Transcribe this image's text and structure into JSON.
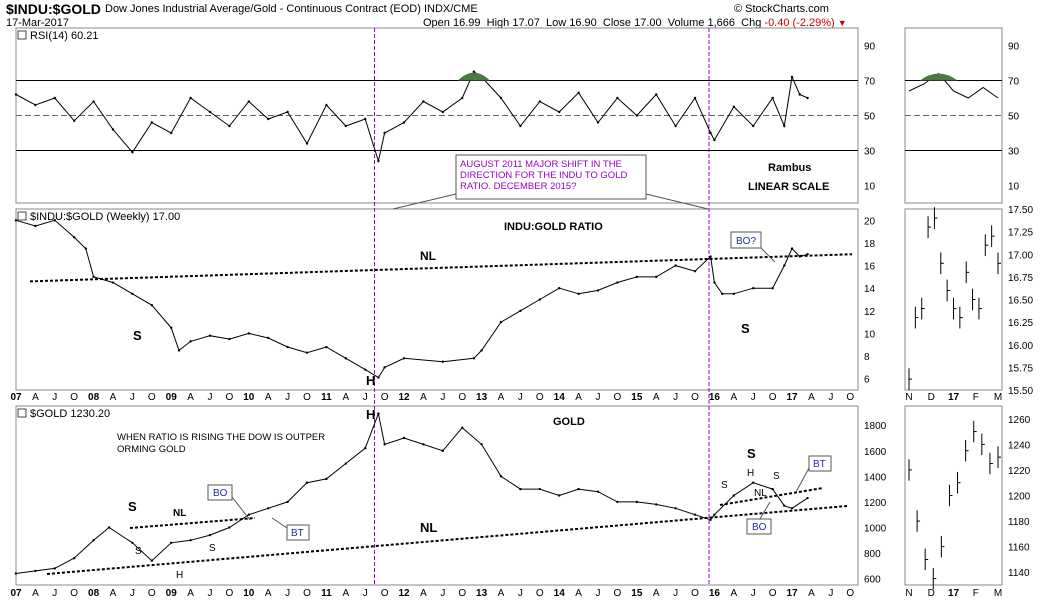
{
  "header": {
    "symbol": "$INDU:$GOLD",
    "description": "Dow Jones Industrial Average/Gold - Continuous Contract (EOD)",
    "exchange": "INDX/CME",
    "date": "17-Mar-2017",
    "brand": "© StockCharts.com",
    "open_label": "Open",
    "open": "16.99",
    "high_label": "High",
    "high": "17.07",
    "low_label": "Low",
    "low": "16.90",
    "close_label": "Close",
    "close": "17.00",
    "volume_label": "Volume",
    "volume": "1,666",
    "chg_label": "Chg",
    "chg": "-0.40 (-2.29%)"
  },
  "colors": {
    "annotation": "#9900cc",
    "box_text": "#1f2e9f",
    "rsi_fill": "#4a7a42",
    "line": "#000000"
  },
  "chart_data": [
    {
      "id": "rsi",
      "type": "line",
      "title": "RSI(14) 60.21",
      "ylim": [
        0,
        100
      ],
      "y_ticks": [
        10,
        30,
        50,
        70,
        90
      ],
      "levels": [
        30,
        50,
        70
      ],
      "x": [
        2007.0,
        2007.25,
        2007.5,
        2007.75,
        2008.0,
        2008.25,
        2008.5,
        2008.75,
        2009.0,
        2009.25,
        2009.5,
        2009.75,
        2010.0,
        2010.25,
        2010.5,
        2010.75,
        2011.0,
        2011.25,
        2011.5,
        2011.67,
        2011.75,
        2012.0,
        2012.25,
        2012.5,
        2012.75,
        2012.9,
        2013.0,
        2013.25,
        2013.5,
        2013.75,
        2014.0,
        2014.25,
        2014.5,
        2014.75,
        2015.0,
        2015.25,
        2015.5,
        2015.75,
        2015.95,
        2016.0,
        2016.25,
        2016.5,
        2016.75,
        2016.9,
        2017.0,
        2017.1,
        2017.2
      ],
      "values": [
        62,
        56,
        60,
        47,
        58,
        42,
        29,
        46,
        40,
        60,
        52,
        44,
        58,
        48,
        52,
        34,
        56,
        44,
        48,
        24,
        40,
        46,
        58,
        52,
        60,
        75,
        72,
        60,
        44,
        58,
        52,
        63,
        46,
        60,
        50,
        62,
        44,
        60,
        40,
        36,
        55,
        44,
        60,
        44,
        72,
        62,
        60
      ],
      "inset_x": [
        "2016-12",
        "2017-01",
        "2017-02",
        "2017-03"
      ],
      "inset_values": [
        64,
        68,
        74,
        64,
        60,
        66,
        60
      ]
    },
    {
      "id": "ratio",
      "type": "line",
      "title": "$INDU:$GOLD (Weekly) 17.00",
      "ylim": [
        5,
        21
      ],
      "y_ticks": [
        6,
        8,
        10,
        12,
        14,
        16,
        18,
        20
      ],
      "x": [
        2007.0,
        2007.25,
        2007.5,
        2007.75,
        2007.9,
        2008.0,
        2008.25,
        2008.5,
        2008.75,
        2009.0,
        2009.1,
        2009.25,
        2009.5,
        2009.75,
        2010.0,
        2010.25,
        2010.5,
        2010.75,
        2011.0,
        2011.25,
        2011.5,
        2011.67,
        2011.75,
        2012.0,
        2012.5,
        2012.9,
        2013.0,
        2013.25,
        2013.5,
        2013.75,
        2014.0,
        2014.25,
        2014.5,
        2014.75,
        2015.0,
        2015.25,
        2015.5,
        2015.75,
        2015.95,
        2016.0,
        2016.1,
        2016.25,
        2016.5,
        2016.75,
        2016.9,
        2017.0,
        2017.1,
        2017.2
      ],
      "values": [
        20.0,
        19.5,
        20.0,
        18.5,
        17.5,
        15.0,
        14.5,
        13.5,
        12.5,
        10.5,
        8.5,
        9.3,
        9.8,
        9.5,
        10.0,
        9.6,
        8.8,
        8.3,
        8.8,
        7.8,
        6.8,
        6.1,
        7.0,
        7.8,
        7.5,
        7.8,
        8.5,
        11.0,
        12.0,
        13.0,
        14.0,
        13.5,
        13.8,
        14.5,
        15.0,
        15.0,
        16.0,
        15.5,
        16.8,
        14.5,
        13.5,
        13.5,
        14.0,
        14.0,
        16.0,
        17.5,
        16.8,
        17.0
      ],
      "inset_x": [
        "N",
        "D",
        "17",
        "F",
        "M"
      ],
      "inset_ylim": [
        15.5,
        17.5
      ],
      "inset_y_ticks": [
        15.5,
        15.75,
        16.0,
        16.25,
        16.5,
        16.75,
        17.0,
        17.25,
        17.5
      ],
      "inset_values": [
        15.62,
        16.3,
        16.4,
        17.3,
        17.4,
        16.9,
        16.6,
        16.4,
        16.3,
        16.8,
        16.5,
        16.4,
        17.1,
        17.2,
        16.9
      ]
    },
    {
      "id": "gold",
      "type": "line",
      "title": "$GOLD 1230.20",
      "ylim": [
        550,
        1950
      ],
      "y_ticks": [
        600,
        800,
        1000,
        1200,
        1400,
        1600,
        1800
      ],
      "x": [
        2007.0,
        2007.25,
        2007.5,
        2007.75,
        2008.0,
        2008.2,
        2008.5,
        2008.75,
        2009.0,
        2009.25,
        2009.5,
        2009.75,
        2010.0,
        2010.25,
        2010.5,
        2010.75,
        2011.0,
        2011.25,
        2011.5,
        2011.67,
        2011.75,
        2012.0,
        2012.25,
        2012.5,
        2012.75,
        2013.0,
        2013.25,
        2013.5,
        2013.75,
        2014.0,
        2014.25,
        2014.5,
        2014.75,
        2015.0,
        2015.25,
        2015.5,
        2015.75,
        2015.95,
        2016.0,
        2016.25,
        2016.5,
        2016.75,
        2016.9,
        2017.0,
        2017.2
      ],
      "values": [
        640,
        660,
        680,
        760,
        900,
        1000,
        880,
        740,
        880,
        900,
        940,
        1000,
        1100,
        1150,
        1200,
        1350,
        1380,
        1500,
        1620,
        1890,
        1650,
        1700,
        1650,
        1600,
        1780,
        1650,
        1400,
        1300,
        1300,
        1250,
        1300,
        1280,
        1200,
        1200,
        1180,
        1150,
        1100,
        1060,
        1100,
        1250,
        1350,
        1300,
        1170,
        1150,
        1230
      ],
      "inset_ylim": [
        1130,
        1270
      ],
      "inset_y_ticks": [
        1140,
        1160,
        1180,
        1200,
        1220,
        1240,
        1260
      ],
      "inset_values": [
        1220,
        1180,
        1150,
        1135,
        1160,
        1200,
        1210,
        1235,
        1250,
        1240,
        1225,
        1230
      ]
    }
  ],
  "x_axis": {
    "labels_top": [
      "07",
      "A",
      "J",
      "O",
      "08",
      "A",
      "J",
      "O",
      "09",
      "A",
      "J",
      "O",
      "10",
      "A",
      "J",
      "O",
      "11",
      "A",
      "J",
      "O",
      "12",
      "A",
      "J",
      "O",
      "13",
      "A",
      "J",
      "O",
      "14",
      "A",
      "J",
      "O",
      "15",
      "A",
      "J",
      "O",
      "16",
      "A",
      "J",
      "O",
      "17",
      "A",
      "J",
      "O"
    ],
    "labels_bottom": [
      "07",
      "A",
      "J",
      "O",
      "08",
      "A",
      "J",
      "O",
      "09",
      "A",
      "J",
      "O",
      "10",
      "A",
      "J",
      "O",
      "11",
      "A",
      "J",
      "O",
      "12",
      "A",
      "J",
      "O",
      "13",
      "A",
      "J",
      "O",
      "14",
      "A",
      "J",
      "O",
      "15",
      "A",
      "J",
      "O",
      "16",
      "A",
      "J",
      "O",
      "17",
      "A",
      "J",
      "O"
    ],
    "inset_labels": [
      "N",
      "D",
      "17",
      "F",
      "M"
    ]
  },
  "annotations": {
    "shift_box": "AUGUST 2011 MAJOR SHIFT IN THE DIRECTION FOR THE INDU TO GOLD RATIO. DECEMBER 2015?",
    "rambus": "Rambus",
    "linear_scale": "LINEAR SCALE",
    "ratio_title": "INDU:GOLD RATIO",
    "ratio_nl": "NL",
    "ratio_s1": "S",
    "ratio_h": "H",
    "ratio_s2": "S",
    "ratio_bo": "BO?",
    "gold_title": "GOLD",
    "gold_note": "WHEN RATIO IS RISING THE DOW IS OUTPERFORMING GOLD",
    "gold_h_top": "H",
    "gold_s_left": "S",
    "gold_nl_small": "NL",
    "gold_s1": "S",
    "gold_s2": "S",
    "gold_h_small": "H",
    "gold_bo": "BO",
    "gold_bt": "BT",
    "gold_nl_big": "NL",
    "gold_s_right": "S",
    "gold_s3": "S",
    "gold_h3": "H",
    "gold_nl3": "NL",
    "gold_s4": "S",
    "gold_bt2": "BT",
    "gold_bo2": "BO"
  }
}
